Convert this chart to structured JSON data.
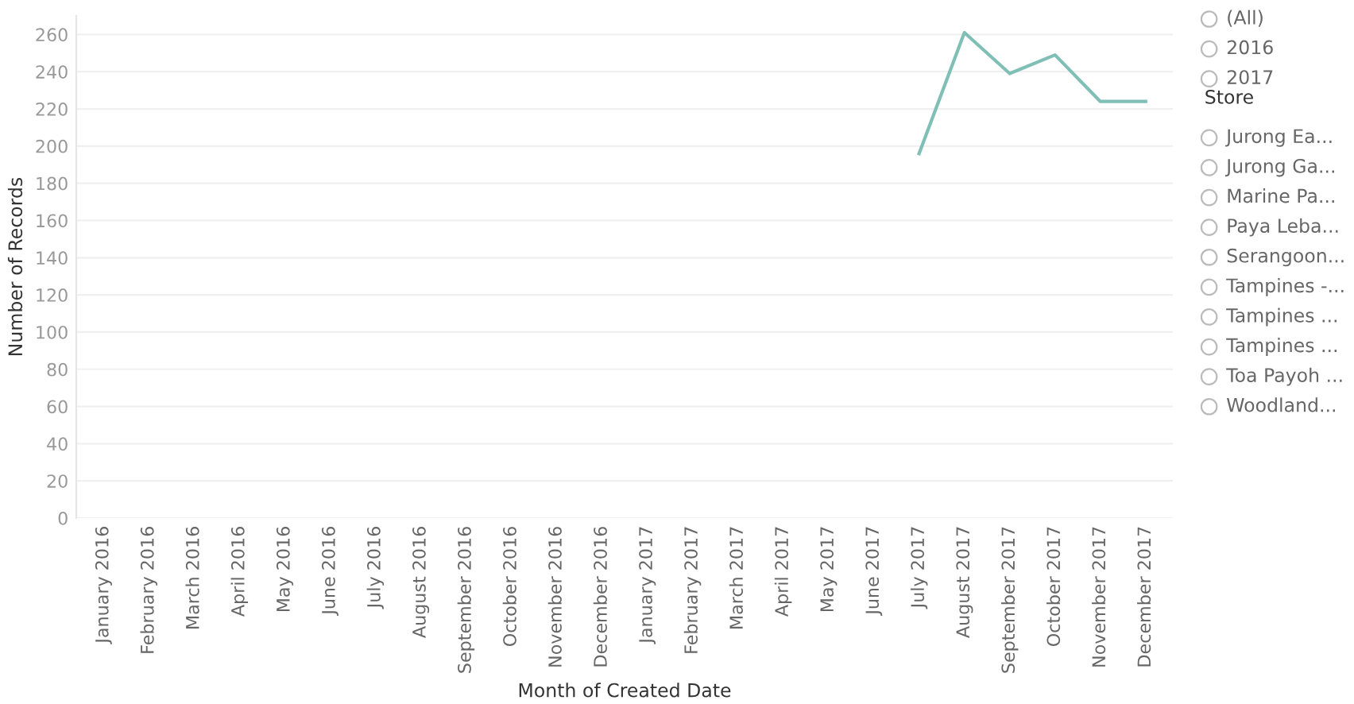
{
  "chart_data": [
    {
      "type": "line",
      "xlabel": "Month of Created Date",
      "ylabel": "Number of Records",
      "categories": [
        "January 2016",
        "February 2016",
        "March 2016",
        "April 2016",
        "May 2016",
        "June 2016",
        "July 2016",
        "August 2016",
        "September 2016",
        "October 2016",
        "November 2016",
        "December 2016",
        "January 2017",
        "February 2017",
        "March 2017",
        "April 2017",
        "May 2017",
        "June 2017",
        "July 2017",
        "August 2017",
        "September 2017",
        "October 2017",
        "November 2017",
        "December 2017"
      ],
      "series": [
        {
          "color": "#7fbfb5",
          "values": [
            null,
            null,
            null,
            null,
            null,
            null,
            null,
            null,
            null,
            null,
            null,
            null,
            null,
            null,
            null,
            null,
            null,
            null,
            196,
            261,
            239,
            249,
            224,
            224
          ]
        }
      ],
      "ylim": [
        0,
        270
      ],
      "yticks": [
        0,
        20,
        40,
        60,
        80,
        100,
        120,
        140,
        160,
        180,
        200,
        220,
        240,
        260
      ],
      "grid": "y",
      "legend": false
    },
    {
      "type": "other",
      "annotations": [
        "(All)",
        "2016",
        "2017"
      ]
    },
    {
      "type": "other",
      "title": "Store",
      "annotations": [
        "Jurong Ea...",
        "Jurong Ga...",
        "Marine Pa...",
        "Paya Leba...",
        "Serangoon...",
        "Tampines -...",
        "Tampines ...",
        "Tampines ...",
        "Toa Payoh ...",
        "Woodland..."
      ]
    }
  ]
}
